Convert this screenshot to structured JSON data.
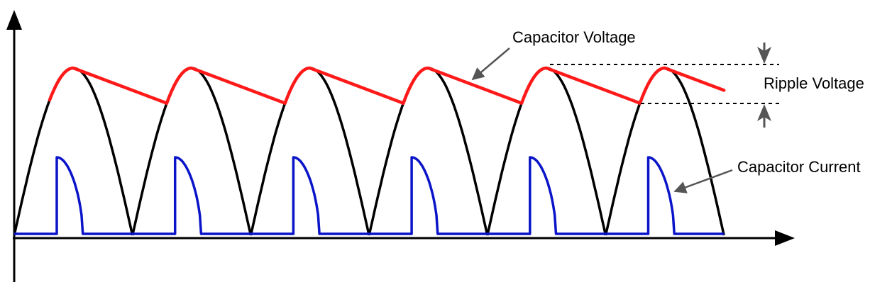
{
  "labels": {
    "capacitor_voltage": "Capacitor Voltage",
    "ripple_voltage": "Ripple Voltage",
    "capacitor_current": "Capacitor Current"
  },
  "colors": {
    "axis": "#000000",
    "rectified_wave": "#000000",
    "capacitor_voltage": "#ff1a1a",
    "capacitor_current": "#0a14c8",
    "annotation": "#555555"
  },
  "pulse_count": 6
}
